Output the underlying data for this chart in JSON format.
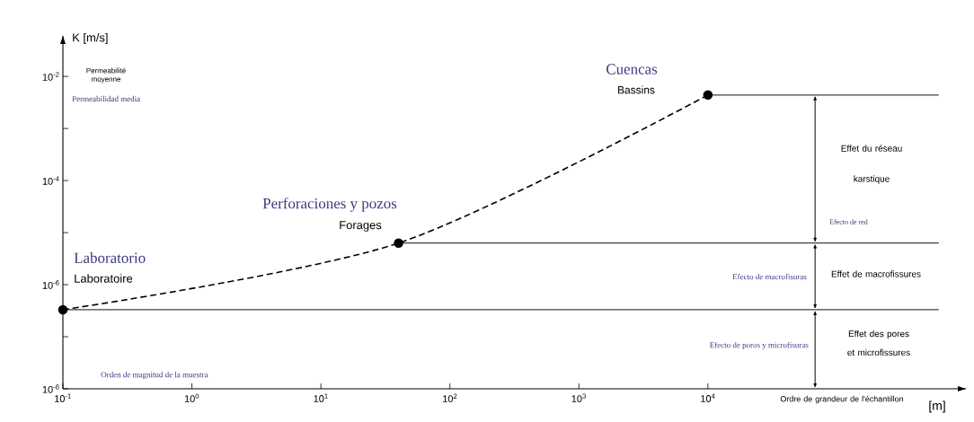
{
  "chart_data": {
    "type": "line",
    "xlabel": "Ordre de grandeur de l'échantillon",
    "ylabel": "K [m/s]",
    "log": "xy",
    "xlim": [
      0.1,
      1000000
    ],
    "ylim": [
      1e-08,
      0.06
    ],
    "xticks": [
      {
        "value": 0.1,
        "label": "10$^{-1}$"
      },
      {
        "value": 1,
        "label": "10$^{0}$"
      },
      {
        "value": 10,
        "label": "10$^{1}$"
      },
      {
        "value": 100,
        "label": "10$^{2}$"
      },
      {
        "value": 1000,
        "label": "10$^{3}$"
      },
      {
        "value": 10000,
        "label": "10$^{4}$"
      }
    ],
    "yticks": [
      {
        "value": 1e-08,
        "label": "10$^{-8}$"
      },
      {
        "value": 1e-07,
        "label": null
      },
      {
        "value": 1e-06,
        "label": "10$^{-6}$"
      },
      {
        "value": 1e-05,
        "label": null
      },
      {
        "value": 0.0001,
        "label": "10$^{-4}$"
      },
      {
        "value": 0.001,
        "label": null
      },
      {
        "value": 0.01,
        "label": "10$^{-2}$"
      }
    ],
    "series": [
      {
        "x": [
          0.1,
          40,
          10000
        ],
        "values": [
          3.3e-07,
          6.3e-06,
          0.0044
        ],
        "color": "#000000",
        "line_style": "dashed",
        "marker": "circle"
      }
    ],
    "ref_lines": [
      {
        "axis": "y",
        "value": 3.3e-07
      },
      {
        "axis": "y",
        "value": 6.3e-06
      },
      {
        "axis": "y",
        "value": 0.0044
      }
    ],
    "annotations": [
      "[m]",
      "Permeabilité moyenne",
      "Permeabilidad media",
      "Laboratorio",
      "Laboratoire",
      "Perforaciones y pozos",
      "Forages",
      "Cuencas",
      "Bassins",
      "Orden de magnitud de la muestra",
      "Effet du réseau karstique",
      "Efecto de red",
      "Effet de macrofissures",
      "Efecto de macrofisuras",
      "Effet des pores et microfissures",
      "Efecto de poros y microfisuras"
    ]
  }
}
